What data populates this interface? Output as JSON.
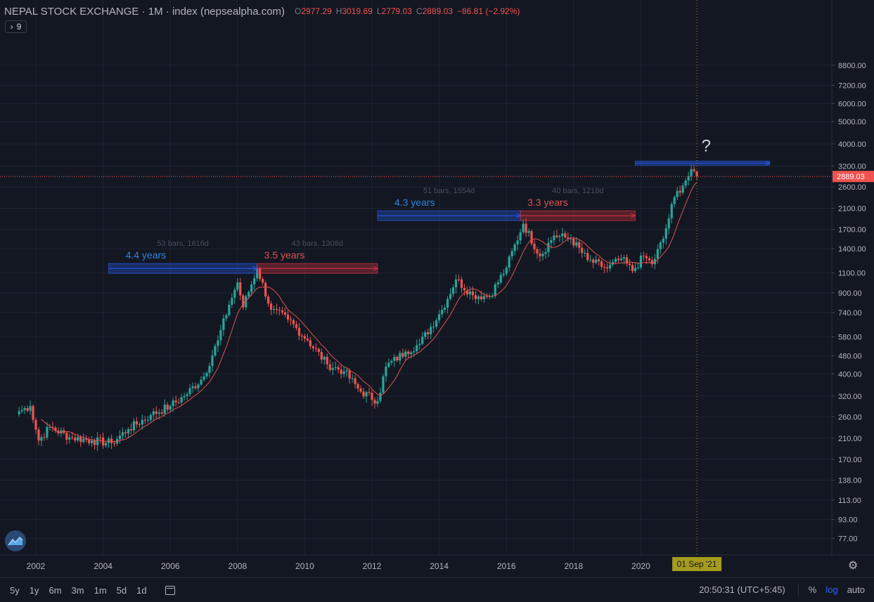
{
  "header": {
    "title": "NEPAL STOCK EXCHANGE · 1M · index (nepsealpha.com)",
    "open_label": "O",
    "open": "2977.29",
    "high_label": "H",
    "high": "3019.69",
    "low_label": "L",
    "low": "2779.03",
    "close_label": "C",
    "close": "2889.03",
    "change": "−86.81 (−2.92%)",
    "indicator_count": "9"
  },
  "colors": {
    "background": "#131722",
    "up": "#26a69a",
    "down": "#ef5350",
    "ma": "#e0514f",
    "measure_blue": "#2962ff",
    "measure_red": "#f23645",
    "crosshair_date_bg": "#a59b1e"
  },
  "price_axis": {
    "ticks": [
      "8800.00",
      "7200.00",
      "6000.00",
      "5000.00",
      "4000.00",
      "3200.00",
      "2600.00",
      "2100.00",
      "1700.00",
      "1400.00",
      "1100.00",
      "900.00",
      "740.00",
      "580.00",
      "480.00",
      "400.00",
      "320.00",
      "260.00",
      "210.00",
      "170.00",
      "138.00",
      "113.00",
      "93.00",
      "77.00"
    ],
    "last_price_label": "2889.03"
  },
  "time_axis": {
    "ticks": [
      "2002",
      "2004",
      "2006",
      "2008",
      "2010",
      "2012",
      "2014",
      "2016",
      "2018",
      "2020"
    ],
    "crosshair_label": "01 Sep '21"
  },
  "annotations": {
    "rise1_label": "4.4 years",
    "rise1_stats": "53 bars, 1616d",
    "fall1_label": "3.5 years",
    "fall1_stats": "43 bars, 1308d",
    "rise2_label": "4.3 years",
    "rise2_stats": "51 bars, 1554d",
    "fall2_label": "3.3 years",
    "fall2_stats": "40 bars, 1218d",
    "question": "?"
  },
  "bottom_bar": {
    "ranges": [
      "5y",
      "1y",
      "6m",
      "3m",
      "1m",
      "5d",
      "1d"
    ],
    "clock": "20:50:31 (UTC+5:45)",
    "percent_label": "%",
    "log_label": "log",
    "auto_label": "auto"
  },
  "chart_data": {
    "type": "candlestick",
    "title": "NEPAL STOCK EXCHANGE · 1M · index (nepsealpha.com)",
    "scale": "log",
    "ylim": [
      77,
      8800
    ],
    "xlim": [
      "2001-06",
      "2023-12"
    ],
    "grid": true,
    "moving_average": true,
    "last_close": 2889.03,
    "anchors": [
      [
        "2001-07",
        275
      ],
      [
        "2001-11",
        290
      ],
      [
        "2002-02",
        205
      ],
      [
        "2002-06",
        235
      ],
      [
        "2003-01",
        212
      ],
      [
        "2003-09",
        205
      ],
      [
        "2004-04",
        200
      ],
      [
        "2004-10",
        230
      ],
      [
        "2005-06",
        265
      ],
      [
        "2006-01",
        290
      ],
      [
        "2006-06",
        320
      ],
      [
        "2007-01",
        390
      ],
      [
        "2007-06",
        560
      ],
      [
        "2007-10",
        800
      ],
      [
        "2008-01",
        1000
      ],
      [
        "2008-03",
        780
      ],
      [
        "2008-08",
        1150
      ],
      [
        "2009-01",
        760
      ],
      [
        "2009-07",
        690
      ],
      [
        "2010-02",
        560
      ],
      [
        "2010-09",
        440
      ],
      [
        "2011-03",
        410
      ],
      [
        "2011-09",
        335
      ],
      [
        "2012-03",
        305
      ],
      [
        "2012-06",
        430
      ],
      [
        "2013-01",
        500
      ],
      [
        "2013-06",
        540
      ],
      [
        "2014-02",
        760
      ],
      [
        "2014-07",
        1030
      ],
      [
        "2015-01",
        880
      ],
      [
        "2015-07",
        870
      ],
      [
        "2016-01",
        1160
      ],
      [
        "2016-07",
        1800
      ],
      [
        "2017-01",
        1300
      ],
      [
        "2017-06",
        1600
      ],
      [
        "2017-12",
        1550
      ],
      [
        "2018-06",
        1250
      ],
      [
        "2019-01",
        1150
      ],
      [
        "2019-06",
        1270
      ],
      [
        "2019-10",
        1120
      ],
      [
        "2020-02",
        1300
      ],
      [
        "2020-05",
        1200
      ],
      [
        "2020-09",
        1550
      ],
      [
        "2021-01",
        2350
      ],
      [
        "2021-06",
        2900
      ],
      [
        "2021-08",
        3050
      ],
      [
        "2021-09",
        2889
      ]
    ],
    "measures": [
      {
        "from": "2004-03",
        "to": "2008-08",
        "price": 1150,
        "label": "4.4 years",
        "stats": "53 bars, 1616d"
      },
      {
        "from": "2008-08",
        "to": "2012-03",
        "price": 1150,
        "label": "3.5 years",
        "stats": "43 bars, 1308d"
      },
      {
        "from": "2012-03",
        "to": "2016-06",
        "price": 1950,
        "label": "4.3 years",
        "stats": "51 bars, 1554d"
      },
      {
        "from": "2016-06",
        "to": "2019-11",
        "price": 1950,
        "label": "3.3 years",
        "stats": "40 bars, 1218d"
      },
      {
        "from": "2019-11",
        "to": "2023-11",
        "price": 3300,
        "label": "?"
      }
    ]
  }
}
